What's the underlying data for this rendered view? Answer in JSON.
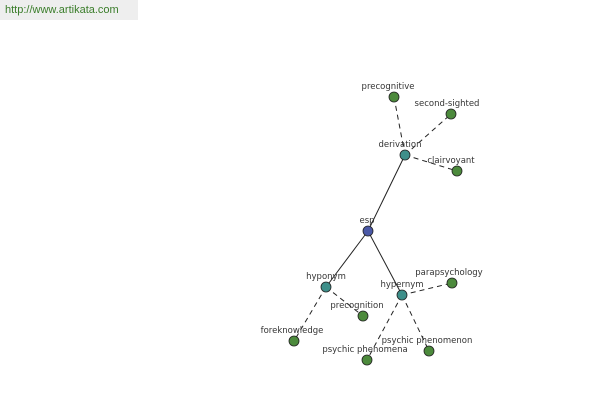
{
  "header": {
    "url": "http://www.artikata.com"
  },
  "nodes": [
    {
      "label": "esp"
    },
    {
      "label": "derivation"
    },
    {
      "label": "hyponym"
    },
    {
      "label": "hypernym"
    },
    {
      "label": "precognitive"
    },
    {
      "label": "second-sighted"
    },
    {
      "label": "clairvoyant"
    },
    {
      "label": "parapsychology"
    },
    {
      "label": "psychic phenomenon"
    },
    {
      "label": "psychic phenomena"
    },
    {
      "label": "precognition"
    },
    {
      "label": "foreknowledge"
    }
  ]
}
